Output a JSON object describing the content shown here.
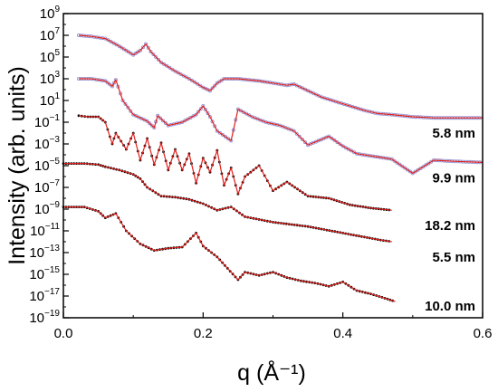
{
  "chart_data": {
    "type": "scatter",
    "title": "",
    "xlabel": "q (Å⁻¹)",
    "ylabel": "Intensity (arb. units)",
    "xlim": [
      0.0,
      0.6
    ],
    "ylim_log10": [
      -19,
      9
    ],
    "y_scale": "log",
    "x_ticks": [
      0.0,
      0.2,
      0.4,
      0.6
    ],
    "x_tick_labels": [
      "0.0",
      "0.2",
      "0.4",
      "0.6"
    ],
    "y_tick_exponents": [
      9,
      7,
      5,
      3,
      1,
      -1,
      -3,
      -5,
      -7,
      -9,
      -11,
      -13,
      -15,
      -17,
      -19
    ],
    "grid": false,
    "legend": "none",
    "marker_colors": {
      "blue_open": "#8a8ad0",
      "black_filled": "#000000"
    },
    "fit_color": "#e0201c",
    "series": [
      {
        "name": "5.8 nm",
        "marker": "blue_open",
        "x": [
          0.022,
          0.04,
          0.06,
          0.08,
          0.09,
          0.1,
          0.11,
          0.118,
          0.125,
          0.14,
          0.16,
          0.18,
          0.2,
          0.21,
          0.22,
          0.23,
          0.25,
          0.28,
          0.3,
          0.32,
          0.33,
          0.35,
          0.37,
          0.39,
          0.41,
          0.43,
          0.45,
          0.47,
          0.5,
          0.53,
          0.56,
          0.6
        ],
        "y_log10": [
          7.0,
          6.9,
          6.7,
          6.0,
          5.6,
          5.2,
          5.6,
          6.2,
          5.5,
          4.5,
          3.7,
          3.0,
          2.2,
          1.9,
          2.6,
          3.0,
          3.0,
          2.8,
          2.6,
          2.4,
          2.5,
          1.9,
          1.3,
          0.9,
          0.5,
          0.1,
          -0.2,
          -0.3,
          -0.5,
          -0.6,
          -0.6,
          -0.6
        ]
      },
      {
        "name": "9.9 nm",
        "marker": "blue_open",
        "x": [
          0.022,
          0.04,
          0.06,
          0.07,
          0.075,
          0.085,
          0.1,
          0.12,
          0.13,
          0.135,
          0.15,
          0.17,
          0.19,
          0.2,
          0.21,
          0.22,
          0.24,
          0.25,
          0.27,
          0.29,
          0.31,
          0.33,
          0.35,
          0.38,
          0.4,
          0.42,
          0.45,
          0.47,
          0.5,
          0.53,
          0.56,
          0.6
        ],
        "y_log10": [
          3.0,
          3.0,
          2.8,
          2.3,
          2.9,
          1.0,
          -0.3,
          -0.9,
          -1.5,
          -0.4,
          -1.3,
          -1.0,
          -0.3,
          0.5,
          -0.5,
          -1.8,
          -2.7,
          0.2,
          -0.5,
          -1.0,
          -1.3,
          -1.8,
          -3.1,
          -2.3,
          -3.2,
          -3.9,
          -4.2,
          -4.4,
          -5.7,
          -4.5,
          -4.6,
          -4.7
        ]
      },
      {
        "name": "18.2 nm",
        "marker": "black_filled",
        "x": [
          0.022,
          0.035,
          0.05,
          0.06,
          0.07,
          0.075,
          0.09,
          0.1,
          0.11,
          0.12,
          0.13,
          0.14,
          0.15,
          0.16,
          0.17,
          0.18,
          0.19,
          0.2,
          0.21,
          0.22,
          0.23,
          0.24,
          0.25,
          0.26,
          0.28,
          0.3,
          0.32,
          0.35,
          0.38,
          0.41,
          0.44,
          0.47
        ],
        "y_log10": [
          -0.4,
          -0.5,
          -0.5,
          -1.0,
          -3.0,
          -2.0,
          -3.5,
          -2.0,
          -4.5,
          -2.5,
          -4.9,
          -2.9,
          -5.4,
          -3.5,
          -5.4,
          -3.9,
          -6.6,
          -4.3,
          -5.6,
          -3.6,
          -6.8,
          -5.2,
          -7.6,
          -6.0,
          -5.0,
          -7.3,
          -6.5,
          -7.8,
          -8.0,
          -8.6,
          -8.9,
          -9.1
        ]
      },
      {
        "name": "5.5 nm",
        "marker": "black_filled",
        "x": [
          0.0,
          0.03,
          0.05,
          0.06,
          0.08,
          0.1,
          0.11,
          0.12,
          0.14,
          0.16,
          0.18,
          0.2,
          0.22,
          0.24,
          0.26,
          0.3,
          0.35,
          0.4,
          0.45,
          0.47
        ],
        "y_log10": [
          -4.8,
          -4.8,
          -4.9,
          -5.1,
          -5.4,
          -5.8,
          -6.2,
          -7.0,
          -7.8,
          -7.9,
          -8.1,
          -8.5,
          -9.1,
          -8.8,
          -9.7,
          -10.2,
          -10.6,
          -11.2,
          -11.8,
          -12.0
        ]
      },
      {
        "name": "10.0 nm",
        "marker": "black_filled",
        "x": [
          0.0,
          0.03,
          0.05,
          0.06,
          0.075,
          0.09,
          0.11,
          0.13,
          0.15,
          0.17,
          0.19,
          0.2,
          0.22,
          0.25,
          0.26,
          0.28,
          0.3,
          0.32,
          0.34,
          0.36,
          0.38,
          0.4,
          0.42,
          0.44,
          0.46,
          0.475
        ],
        "y_log10": [
          -8.8,
          -8.8,
          -9.2,
          -9.8,
          -9.4,
          -11.0,
          -12.2,
          -12.8,
          -12.6,
          -12.5,
          -11.2,
          -12.4,
          -13.4,
          -15.5,
          -14.8,
          -15.1,
          -14.8,
          -15.3,
          -15.6,
          -15.8,
          -16.1,
          -15.7,
          -16.5,
          -16.8,
          -17.2,
          -17.5
        ]
      }
    ]
  }
}
